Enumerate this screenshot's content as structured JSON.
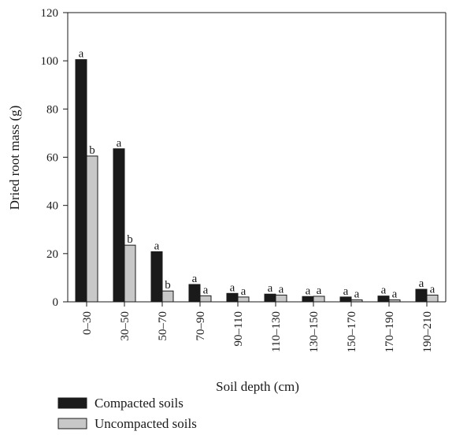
{
  "chart_data": {
    "type": "bar",
    "xlabel": "Soil depth (cm)",
    "ylabel": "Dried root mass (g)",
    "ylim": [
      0,
      120
    ],
    "yticks": [
      0,
      20,
      40,
      60,
      80,
      100,
      120
    ],
    "categories": [
      "0–30",
      "30–50",
      "50–70",
      "70–90",
      "90–110",
      "110–130",
      "130–150",
      "150–170",
      "170–190",
      "190–210"
    ],
    "series": [
      {
        "name": "Compacted soils",
        "color": "#1a1a1a",
        "values": [
          100.5,
          63.5,
          20.8,
          7.2,
          3.5,
          3.2,
          2.2,
          2.0,
          2.4,
          5.2
        ],
        "letters": [
          "a",
          "a",
          "a",
          "a",
          "a",
          "a",
          "a",
          "a",
          "a",
          "a"
        ]
      },
      {
        "name": "Uncompacted soils",
        "color": "#c8c8c8",
        "values": [
          60.5,
          23.5,
          4.5,
          2.5,
          2.0,
          2.8,
          2.3,
          0.8,
          0.8,
          2.8
        ],
        "letters": [
          "b",
          "b",
          "b",
          "a",
          "a",
          "a",
          "a",
          "a",
          "a",
          "a"
        ]
      }
    ],
    "legend_position": "bottom-left",
    "grid": false
  }
}
